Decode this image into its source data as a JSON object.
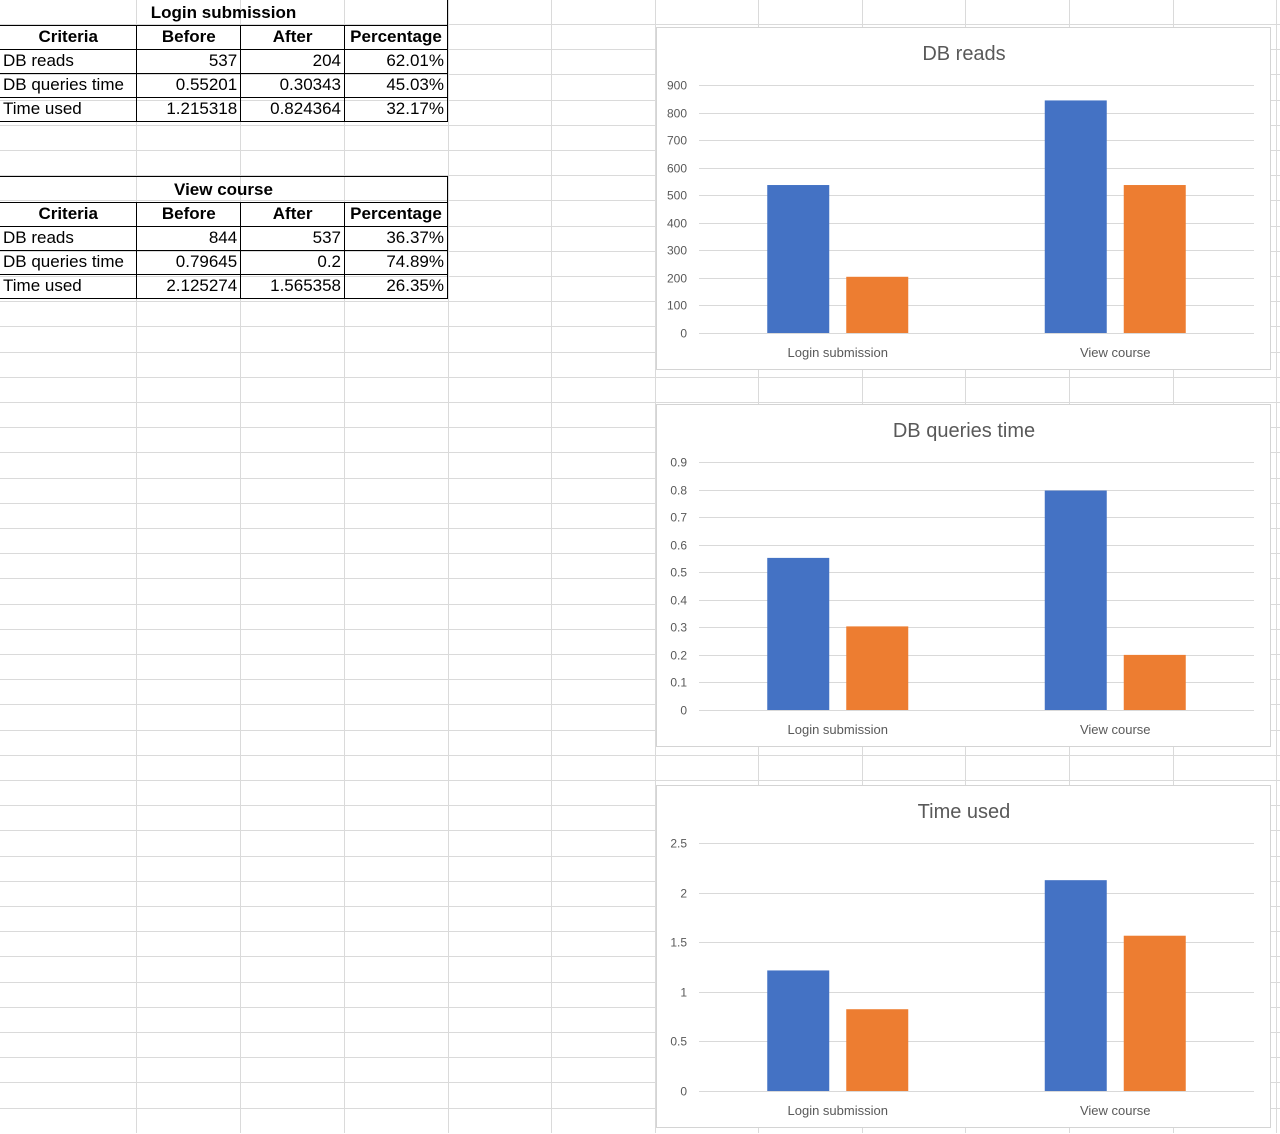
{
  "tables": [
    {
      "title": "Login submission",
      "headers": [
        "Criteria",
        "Before",
        "After",
        "Percentage"
      ],
      "rows": [
        [
          "DB reads",
          "537",
          "204",
          "62.01%"
        ],
        [
          "DB queries time",
          "0.55201",
          "0.30343",
          "45.03%"
        ],
        [
          "Time used",
          "1.215318",
          "0.824364",
          "32.17%"
        ]
      ]
    },
    {
      "title": "View course",
      "headers": [
        "Criteria",
        "Before",
        "After",
        "Percentage"
      ],
      "rows": [
        [
          "DB reads",
          "844",
          "537",
          "36.37%"
        ],
        [
          "DB queries time",
          "0.79645",
          "0.2",
          "74.89%"
        ],
        [
          "Time used",
          "2.125274",
          "1.565358",
          "26.35%"
        ]
      ]
    }
  ],
  "colors": {
    "series_before": "#4472C4",
    "series_after": "#ED7D31",
    "gridline": "#D9D9D9"
  },
  "chart_data": [
    {
      "type": "bar",
      "title": "DB reads",
      "categories": [
        "Login submission",
        "View course"
      ],
      "series": [
        {
          "values": [
            537,
            844
          ]
        },
        {
          "values": [
            204,
            537
          ]
        }
      ],
      "ylim": [
        0,
        900
      ],
      "yticks": [
        "0",
        "100",
        "200",
        "300",
        "400",
        "500",
        "600",
        "700",
        "800",
        "900"
      ],
      "grid": true
    },
    {
      "type": "bar",
      "title": "DB queries time",
      "categories": [
        "Login submission",
        "View course"
      ],
      "series": [
        {
          "values": [
            0.55201,
            0.79645
          ]
        },
        {
          "values": [
            0.30343,
            0.2
          ]
        }
      ],
      "ylim": [
        0,
        0.9
      ],
      "yticks": [
        "0",
        "0.1",
        "0.2",
        "0.3",
        "0.4",
        "0.5",
        "0.6",
        "0.7",
        "0.8",
        "0.9"
      ],
      "grid": true
    },
    {
      "type": "bar",
      "title": "Time used",
      "categories": [
        "Login submission",
        "View course"
      ],
      "series": [
        {
          "values": [
            1.215318,
            2.125274
          ]
        },
        {
          "values": [
            0.824364,
            1.565358
          ]
        }
      ],
      "ylim": [
        0,
        2.5
      ],
      "yticks": [
        "0",
        "0.5",
        "1",
        "1.5",
        "2",
        "2.5"
      ],
      "grid": true
    }
  ]
}
